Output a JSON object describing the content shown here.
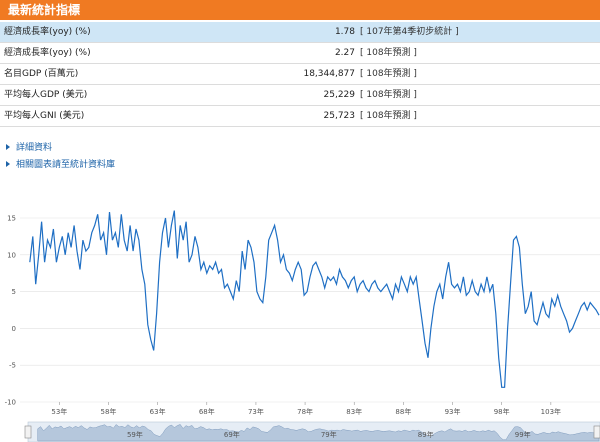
{
  "header": {
    "title": "最新統計指標"
  },
  "stats": [
    {
      "label": "經濟成長率(yoy) (%)",
      "value": "1.78",
      "note": "[ 107年第4季初步統計 ]",
      "highlight": true
    },
    {
      "label": "經濟成長率(yoy) (%)",
      "value": "2.27",
      "note": "[ 108年預測 ]",
      "highlight": false
    },
    {
      "label": "名目GDP (百萬元)",
      "value": "18,344,877",
      "note": "[ 108年預測 ]",
      "highlight": false
    },
    {
      "label": "平均每人GDP (美元)",
      "value": "25,229",
      "note": "[ 108年預測 ]",
      "highlight": false
    },
    {
      "label": "平均每人GNI (美元)",
      "value": "25,723",
      "note": "[ 108年預測 ]",
      "highlight": false
    }
  ],
  "links": [
    {
      "label": "詳細資料"
    },
    {
      "label": "相關圖表請至統計資料庫"
    }
  ],
  "colors": {
    "header": "#f07a22",
    "highlight_row": "#cfe6f6",
    "line": "#1f6fc4",
    "link": "#1d63a8"
  },
  "chart_data": {
    "type": "line",
    "title": "",
    "xlabel": "",
    "ylabel": "",
    "ylim": [
      -10,
      15
    ],
    "y_ticks": [
      -10,
      -5,
      0,
      5,
      10,
      15
    ],
    "x_ticks": [
      {
        "label": "53年",
        "x": 53
      },
      {
        "label": "58年",
        "x": 58
      },
      {
        "label": "63年",
        "x": 63
      },
      {
        "label": "68年",
        "x": 68
      },
      {
        "label": "73年",
        "x": 73
      },
      {
        "label": "78年",
        "x": 78
      },
      {
        "label": "83年",
        "x": 83
      },
      {
        "label": "88年",
        "x": 88
      },
      {
        "label": "93年",
        "x": 93
      },
      {
        "label": "98年",
        "x": 98
      },
      {
        "label": "103年",
        "x": 103
      }
    ],
    "xlim": [
      49,
      108
    ],
    "navigator_ticks": [
      {
        "label": "59年",
        "x": 59
      },
      {
        "label": "69年",
        "x": 69
      },
      {
        "label": "79年",
        "x": 79
      },
      {
        "label": "89年",
        "x": 89
      },
      {
        "label": "99年",
        "x": 99
      }
    ],
    "series": [
      {
        "x": [
          50,
          50.3,
          50.6,
          50.9,
          51.2,
          51.5,
          51.8,
          52.1,
          52.4,
          52.7,
          53,
          53.3,
          53.6,
          53.9,
          54.2,
          54.5,
          54.8,
          55.1,
          55.4,
          55.7,
          56,
          56.3,
          56.6,
          56.9,
          57.2,
          57.5,
          57.8,
          58.1,
          58.4,
          58.7,
          59,
          59.3,
          59.6,
          59.9,
          60.2,
          60.5,
          60.8,
          61.1,
          61.4,
          61.7,
          62,
          62.3,
          62.6,
          62.9,
          63.2,
          63.5,
          63.8,
          64.1,
          64.4,
          64.7,
          65,
          65.3,
          65.6,
          65.9,
          66.2,
          66.5,
          66.8,
          67.1,
          67.4,
          67.7,
          68,
          68.3,
          68.6,
          68.9,
          69.2,
          69.5,
          69.8,
          70.1,
          70.4,
          70.7,
          71,
          71.3,
          71.6,
          71.9,
          72.2,
          72.5,
          72.8,
          73.1,
          73.4,
          73.7,
          74,
          74.3,
          74.6,
          74.9,
          75.2,
          75.5,
          75.8,
          76.1,
          76.4,
          76.7,
          77,
          77.3,
          77.6,
          77.9,
          78.2,
          78.5,
          78.8,
          79.1,
          79.4,
          79.7,
          80,
          80.3,
          80.6,
          80.9,
          81.2,
          81.5,
          81.8,
          82.1,
          82.4,
          82.7,
          83,
          83.3,
          83.6,
          83.9,
          84.2,
          84.5,
          84.8,
          85.1,
          85.4,
          85.7,
          86,
          86.3,
          86.6,
          86.9,
          87.2,
          87.5,
          87.8,
          88.1,
          88.4,
          88.7,
          89,
          89.3,
          89.6,
          89.9,
          90.2,
          90.5,
          90.8,
          91.1,
          91.4,
          91.7,
          92,
          92.3,
          92.6,
          92.9,
          93.2,
          93.5,
          93.8,
          94.1,
          94.4,
          94.7,
          95,
          95.3,
          95.6,
          95.9,
          96.2,
          96.5,
          96.8,
          97.1,
          97.4,
          97.7,
          98,
          98.3,
          98.6,
          98.9,
          99.2,
          99.5,
          99.8,
          100.1,
          100.4,
          100.7,
          101,
          101.3,
          101.6,
          101.9,
          102.2,
          102.5,
          102.8,
          103.1,
          103.4,
          103.7,
          104,
          104.3,
          104.6,
          104.9,
          105.2,
          105.5,
          105.8,
          106.1,
          106.4,
          106.7,
          107,
          107.3,
          107.6,
          107.9
        ],
        "values": [
          9,
          12.5,
          6,
          10,
          14.5,
          9,
          12,
          11,
          13.5,
          9,
          11,
          12.5,
          10,
          13,
          11,
          14,
          10.5,
          8,
          12,
          10.5,
          11,
          13,
          14,
          15.5,
          12,
          13,
          10,
          15.8,
          12,
          13,
          11,
          15.5,
          12,
          10.5,
          14,
          10.5,
          13.5,
          12,
          8,
          6,
          0.5,
          -1.5,
          -3,
          2,
          9,
          13,
          15,
          11,
          14,
          16,
          9.5,
          14,
          12,
          14.5,
          9,
          10,
          12.5,
          11,
          8,
          9,
          7.5,
          8.5,
          8,
          9,
          7.5,
          8,
          5.5,
          6,
          5,
          4,
          6.5,
          5,
          10.5,
          8,
          12,
          11,
          9,
          5,
          4,
          3.5,
          7,
          12,
          13,
          14,
          12,
          9,
          10,
          8,
          7.5,
          6.5,
          8,
          9,
          8,
          4.5,
          5,
          7,
          8.5,
          9,
          8,
          7,
          5.5,
          7,
          6.5,
          7,
          6,
          8,
          7,
          6.5,
          5.5,
          6.5,
          7,
          5,
          6,
          6.5,
          5.5,
          5,
          6,
          6.5,
          5.5,
          5,
          5.5,
          6,
          5,
          4,
          6,
          5,
          7,
          6,
          5,
          7,
          6,
          7,
          4,
          1,
          -2,
          -4,
          0,
          3,
          5,
          6,
          4,
          7,
          9,
          6,
          5.5,
          6,
          5,
          7,
          4.5,
          5,
          6.5,
          5,
          4.5,
          6,
          5,
          7,
          5,
          6,
          2,
          -4,
          -8,
          -8,
          0,
          6,
          12,
          12.5,
          11,
          6,
          2,
          3,
          5,
          1,
          0.5,
          2,
          3.5,
          2,
          1.5,
          4,
          3,
          4.5,
          3,
          2,
          1,
          -0.5,
          0,
          1,
          2,
          3,
          3.5,
          2.5,
          3.5,
          3,
          2.5,
          1.8
        ]
      }
    ]
  }
}
